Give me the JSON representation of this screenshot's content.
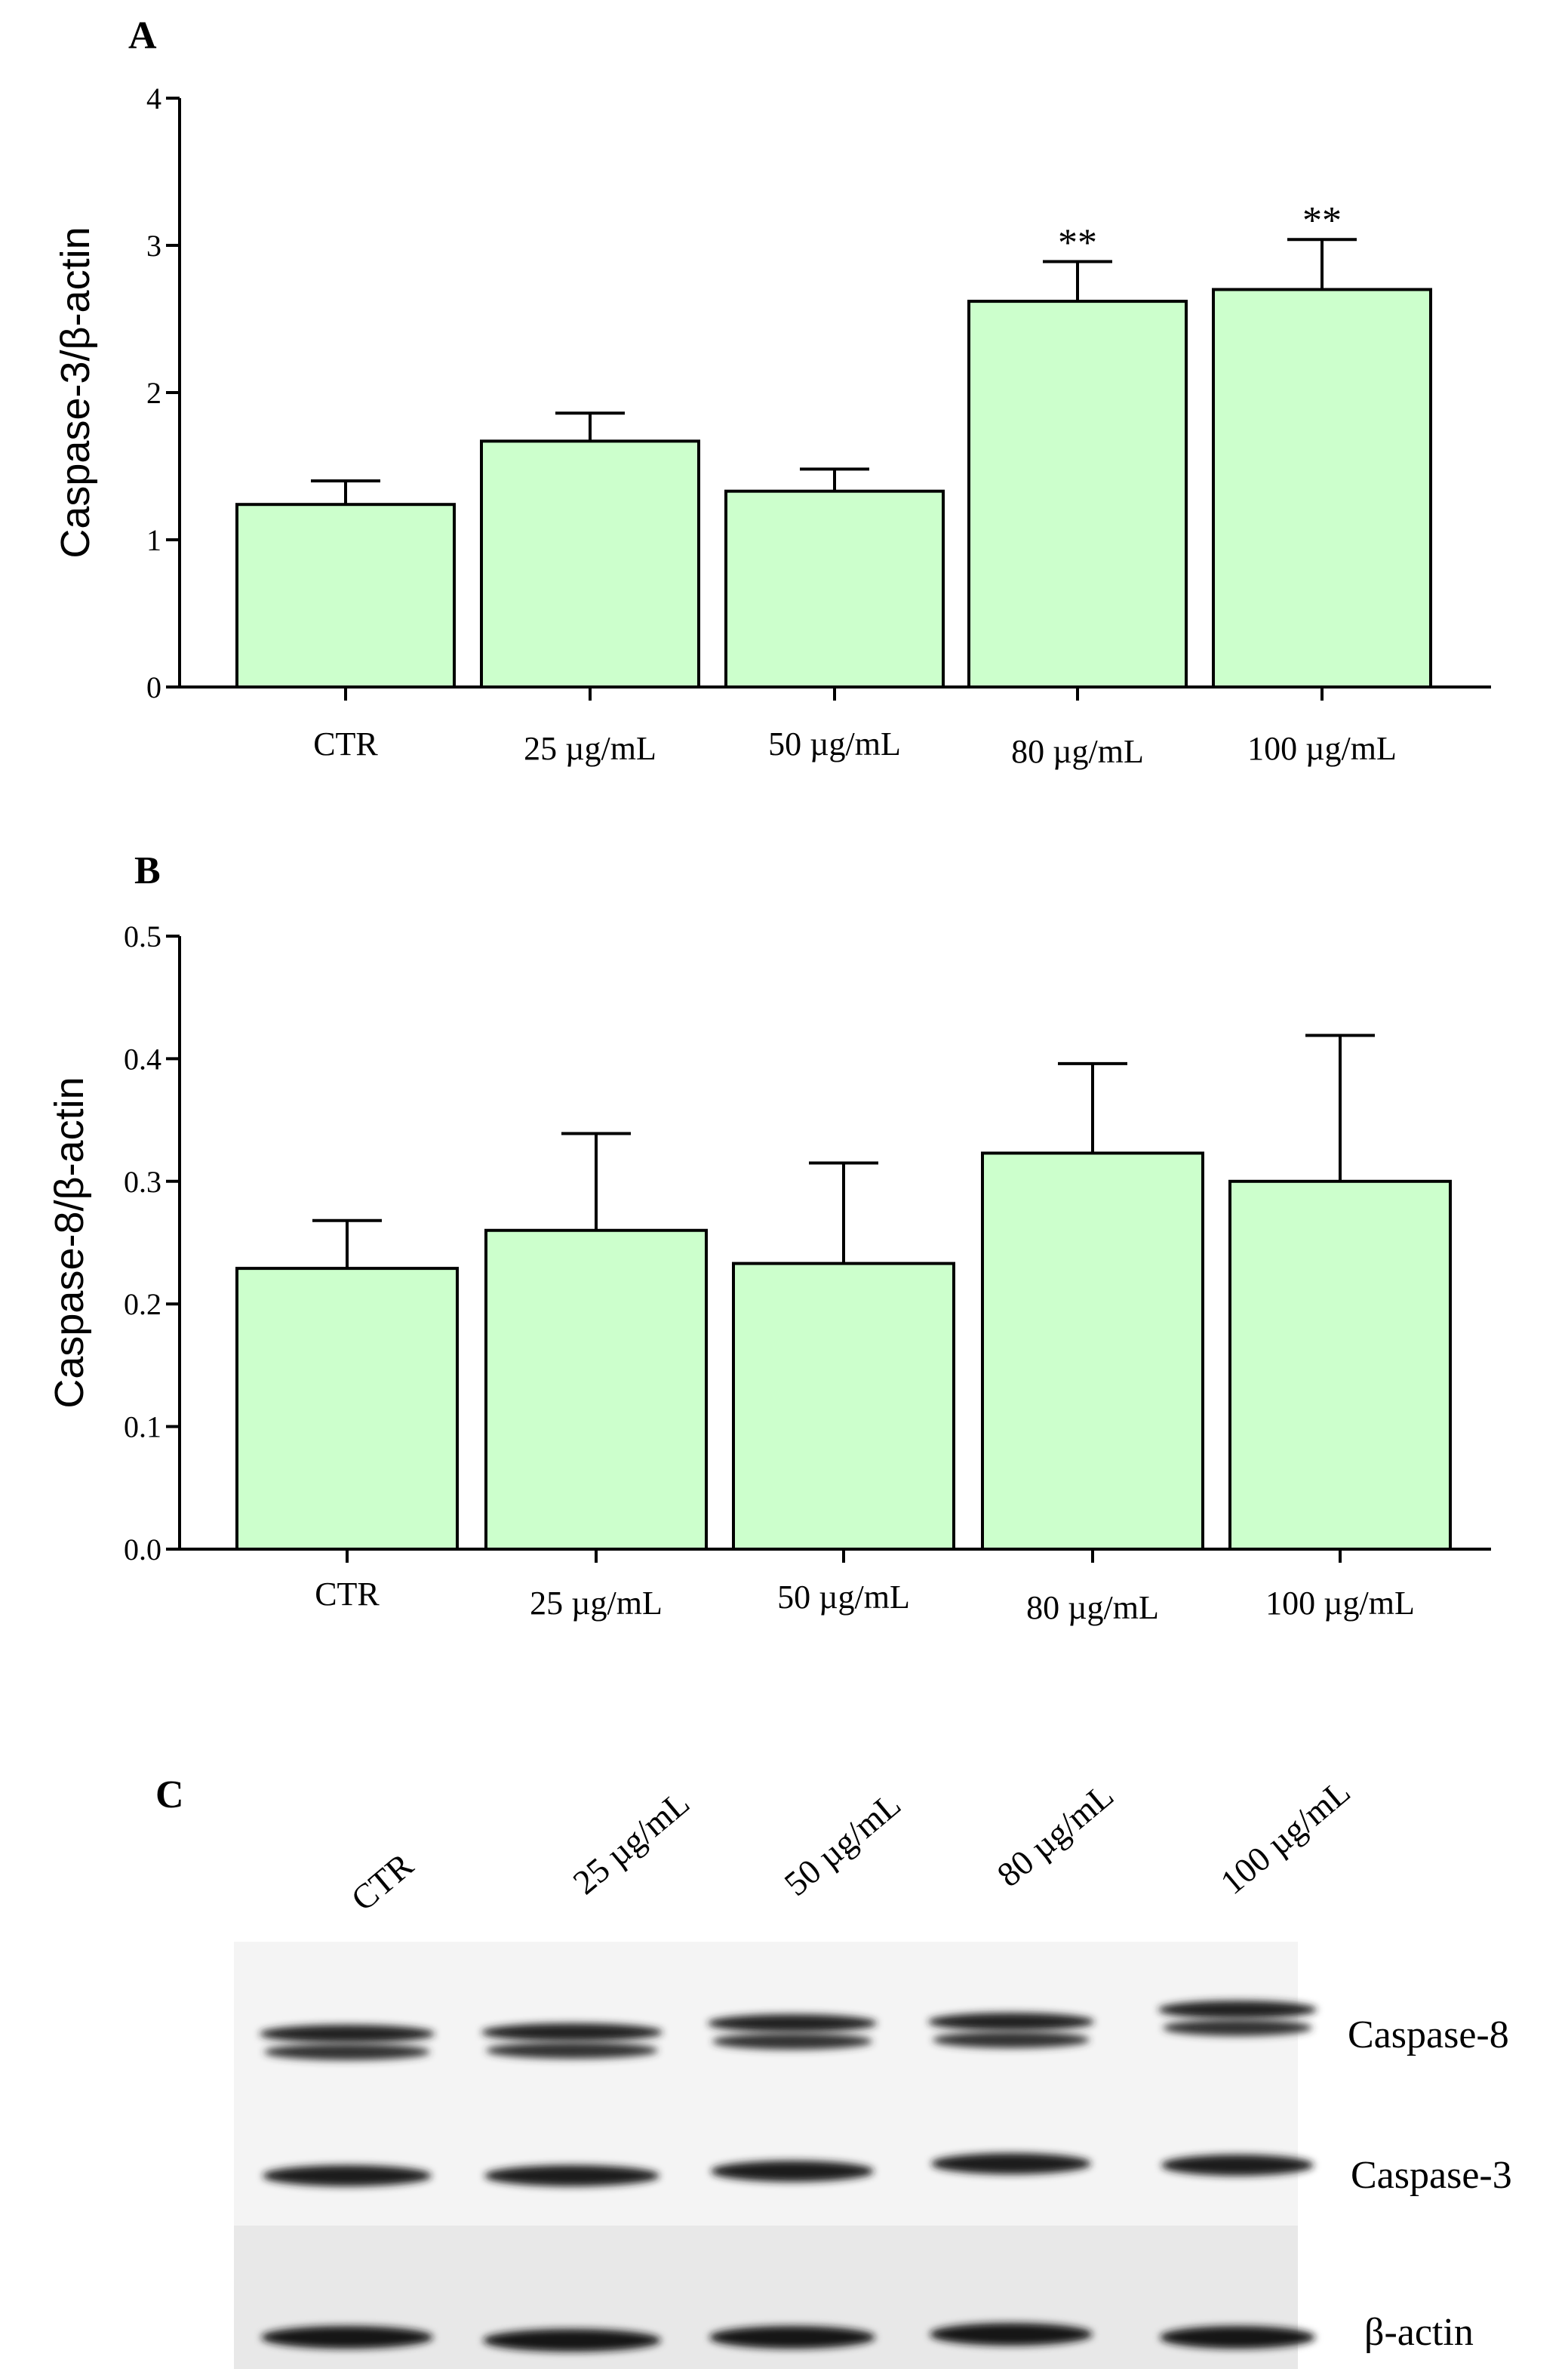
{
  "panels": {
    "a_label": "A",
    "b_label": "B",
    "c_label": "C"
  },
  "chart_data": [
    {
      "type": "bar",
      "panel": "A",
      "title": "",
      "xlabel": "",
      "ylabel": "Caspase-3/β-actin",
      "categories": [
        "CTR",
        "25 µg/mL",
        "50 µg/mL",
        "80 µg/mL",
        "100 µg/mL"
      ],
      "values": [
        1.24,
        1.67,
        1.33,
        2.62,
        2.7
      ],
      "errors": [
        0.16,
        0.19,
        0.15,
        0.27,
        0.34
      ],
      "annotations": [
        "",
        "",
        "",
        "**",
        "**"
      ],
      "ylim": [
        0,
        4
      ],
      "yticks": [
        "0",
        "1",
        "2",
        "3",
        "4"
      ],
      "bar_color": "#ccffcc",
      "grid": false
    },
    {
      "type": "bar",
      "panel": "B",
      "title": "",
      "xlabel": "",
      "ylabel": "Caspase-8/β-actin",
      "categories": [
        "CTR",
        "25 µg/mL",
        "50 µg/mL",
        "80 µg/mL",
        "100 µg/mL"
      ],
      "values": [
        0.229,
        0.26,
        0.233,
        0.323,
        0.3
      ],
      "errors": [
        0.039,
        0.079,
        0.082,
        0.073,
        0.119
      ],
      "annotations": [
        "",
        "",
        "",
        "",
        ""
      ],
      "ylim": [
        0,
        0.5
      ],
      "yticks": [
        "0.0",
        "0.1",
        "0.2",
        "0.3",
        "0.4",
        "0.5"
      ],
      "bar_color": "#ccffcc",
      "grid": false
    }
  ],
  "blot": {
    "lanes": [
      "CTR",
      "25 µg/mL",
      "50 µg/mL",
      "80 µg/mL",
      "100 µg/mL"
    ],
    "rows": [
      "Caspase-8",
      "Caspase-3",
      "β-actin"
    ]
  }
}
